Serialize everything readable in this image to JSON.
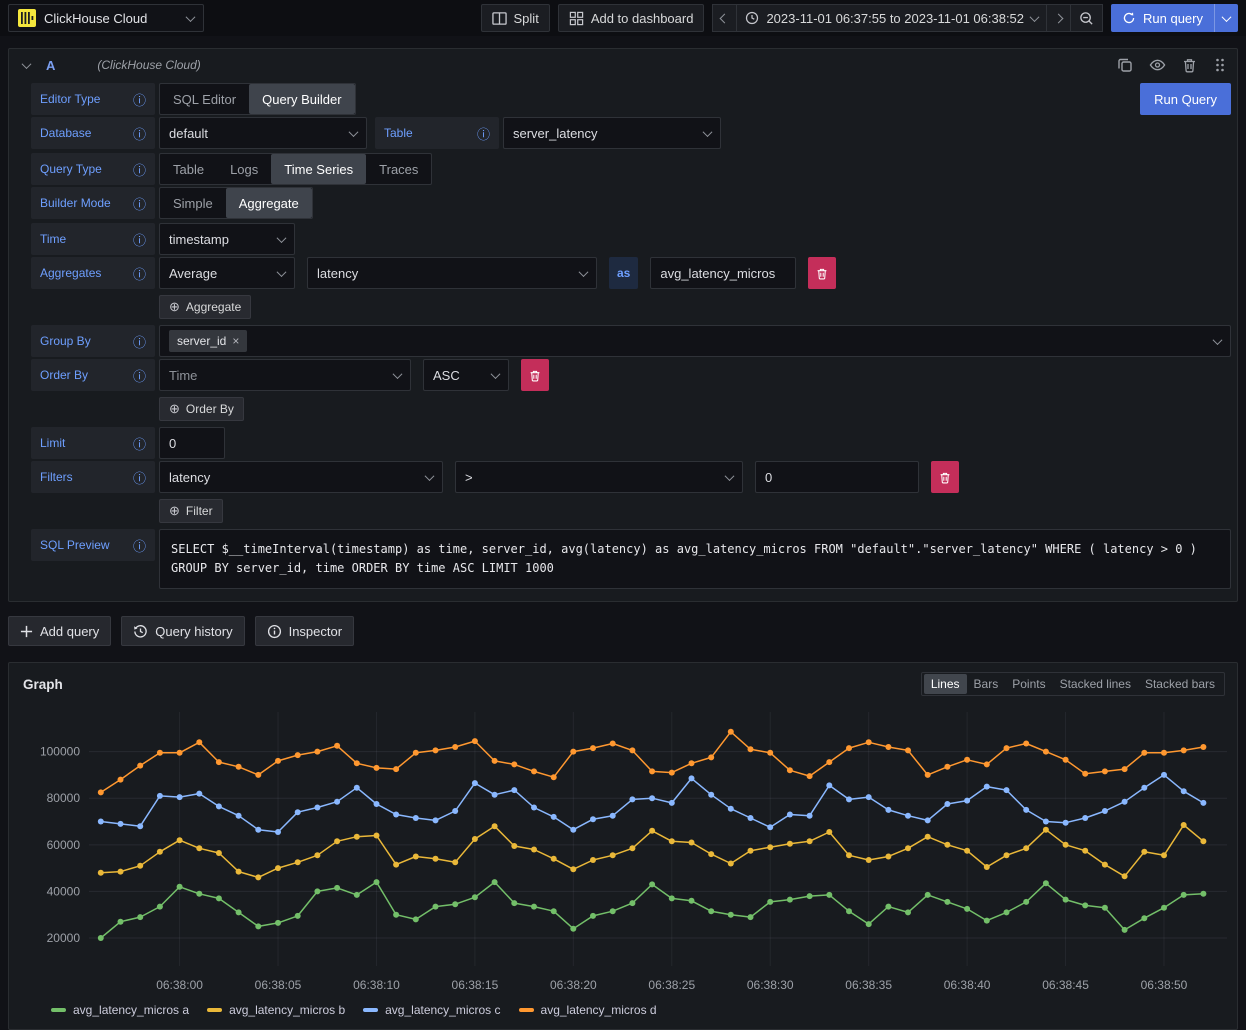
{
  "colors": {
    "accent_blue": "#4a6fd9",
    "label_blue": "#6e9fff",
    "destructive_red": "#c42e5a",
    "brand_yellow": "#f5e73d",
    "panel_bg": "#181b1f"
  },
  "topbar": {
    "datasource_name": "ClickHouse Cloud",
    "split_label": "Split",
    "add_to_dashboard_label": "Add to dashboard",
    "time_range": "2023-11-01 06:37:55 to 2023-11-01 06:38:52",
    "run_query_label": "Run query"
  },
  "query_editor": {
    "ref_id": "A",
    "datasource_hint": "(ClickHouse Cloud)",
    "run_button": "Run Query",
    "editor_type": {
      "label": "Editor Type",
      "options": [
        "SQL Editor",
        "Query Builder"
      ],
      "selected": "Query Builder"
    },
    "database": {
      "label": "Database",
      "value": "default"
    },
    "table": {
      "label": "Table",
      "value": "server_latency"
    },
    "query_type": {
      "label": "Query Type",
      "options": [
        "Table",
        "Logs",
        "Time Series",
        "Traces"
      ],
      "selected": "Time Series"
    },
    "builder_mode": {
      "label": "Builder Mode",
      "options": [
        "Simple",
        "Aggregate"
      ],
      "selected": "Aggregate"
    },
    "time": {
      "label": "Time",
      "value": "timestamp"
    },
    "aggregates": {
      "label": "Aggregates",
      "function": "Average",
      "column": "latency",
      "as_label": "as",
      "alias": "avg_latency_micros",
      "add_button": "Aggregate"
    },
    "group_by": {
      "label": "Group By",
      "chips": [
        "server_id"
      ]
    },
    "order_by": {
      "label": "Order By",
      "field_placeholder": "Time",
      "direction": "ASC",
      "add_button": "Order By"
    },
    "limit": {
      "label": "Limit",
      "value": "0"
    },
    "filters": {
      "label": "Filters",
      "column": "latency",
      "operator": ">",
      "value": "0",
      "add_button": "Filter"
    },
    "sql_preview": {
      "label": "SQL Preview",
      "sql": "SELECT $__timeInterval(timestamp) as time, server_id, avg(latency) as avg_latency_micros FROM \"default\".\"server_latency\" WHERE ( latency > 0 ) GROUP BY server_id, time ORDER BY time ASC LIMIT 1000"
    }
  },
  "footer_buttons": {
    "add_query": "Add query",
    "query_history": "Query history",
    "inspector": "Inspector"
  },
  "graph_panel": {
    "title": "Graph",
    "display_modes": [
      "Lines",
      "Bars",
      "Points",
      "Stacked lines",
      "Stacked bars"
    ],
    "selected_mode": "Lines"
  },
  "chart_data": {
    "type": "line",
    "title": "Graph",
    "xlabel": "",
    "ylabel": "",
    "grid": true,
    "legend_position": "bottom-left",
    "x_unit": "seconds after 06:37:00",
    "x_domain": [
      55.4,
      113.2
    ],
    "y_domain": [
      8000,
      117000
    ],
    "y_ticks": [
      20000,
      40000,
      60000,
      80000,
      100000
    ],
    "x_ticks": {
      "values": [
        60,
        65,
        70,
        75,
        80,
        85,
        90,
        95,
        100,
        105,
        110
      ],
      "labels": [
        "06:38:00",
        "06:38:05",
        "06:38:10",
        "06:38:15",
        "06:38:20",
        "06:38:25",
        "06:38:30",
        "06:38:35",
        "06:38:40",
        "06:38:45",
        "06:38:50"
      ]
    },
    "x": [
      56,
      57,
      58,
      59,
      60,
      61,
      62,
      63,
      64,
      65,
      66,
      67,
      68,
      69,
      70,
      71,
      72,
      73,
      74,
      75,
      76,
      77,
      78,
      79,
      80,
      81,
      82,
      83,
      84,
      85,
      86,
      87,
      88,
      89,
      90,
      91,
      92,
      93,
      94,
      95,
      96,
      97,
      98,
      99,
      100,
      101,
      102,
      103,
      104,
      105,
      106,
      107,
      108,
      109,
      110,
      111,
      112
    ],
    "series": [
      {
        "name": "avg_latency_micros a",
        "color": "#73BF69",
        "values": [
          20000,
          27000,
          29000,
          33500,
          42000,
          39000,
          37000,
          31000,
          25000,
          26500,
          29500,
          40000,
          41500,
          38500,
          44000,
          30000,
          28000,
          33500,
          34500,
          37500,
          44000,
          35000,
          33500,
          31500,
          24000,
          29500,
          31500,
          35000,
          43000,
          37000,
          36000,
          31500,
          30000,
          29000,
          35500,
          36500,
          38000,
          38500,
          31500,
          26000,
          33500,
          31000,
          38500,
          35500,
          32500,
          27500,
          31000,
          35500,
          43500,
          36500,
          34000,
          33000,
          23500,
          28500,
          33000,
          38500,
          39000
        ]
      },
      {
        "name": "avg_latency_micros b",
        "color": "#EAB839",
        "values": [
          48000,
          48500,
          51000,
          57000,
          62000,
          58500,
          56500,
          48500,
          46000,
          50000,
          52500,
          55500,
          61500,
          63500,
          64000,
          51500,
          55000,
          54000,
          52500,
          62500,
          68000,
          59500,
          58000,
          54000,
          49500,
          53500,
          55500,
          58500,
          66000,
          61500,
          61000,
          56000,
          52000,
          57500,
          59000,
          60500,
          61500,
          65500,
          55500,
          53500,
          55000,
          58500,
          63500,
          60000,
          57500,
          50500,
          55500,
          58500,
          66500,
          60000,
          57500,
          51500,
          46500,
          57000,
          55500,
          68500,
          61500
        ]
      },
      {
        "name": "avg_latency_micros c",
        "color": "#8AB8FF",
        "values": [
          70000,
          69000,
          68000,
          81000,
          80500,
          82000,
          76500,
          72500,
          66500,
          65500,
          74000,
          76000,
          78500,
          84500,
          77500,
          73000,
          71500,
          70500,
          74500,
          86500,
          81500,
          83500,
          76000,
          72000,
          66500,
          71000,
          72500,
          79500,
          80000,
          78000,
          88500,
          81500,
          75500,
          71500,
          67500,
          73000,
          72500,
          85500,
          79500,
          80500,
          75000,
          72500,
          70500,
          77500,
          79000,
          85000,
          83500,
          75000,
          70000,
          69500,
          71500,
          74500,
          78500,
          84500,
          90000,
          83000,
          78000
        ]
      },
      {
        "name": "avg_latency_micros d",
        "color": "#FF9830",
        "values": [
          82500,
          88000,
          94000,
          99500,
          99500,
          104000,
          95500,
          93500,
          90000,
          96000,
          98500,
          100000,
          102500,
          95000,
          93000,
          92500,
          99500,
          100500,
          102000,
          104500,
          96000,
          94500,
          91500,
          89000,
          100000,
          101500,
          103500,
          100500,
          91500,
          91000,
          95000,
          97500,
          108500,
          101000,
          99500,
          92000,
          89500,
          95500,
          101500,
          104000,
          102000,
          100500,
          90000,
          93500,
          96500,
          94500,
          101500,
          103500,
          100000,
          96500,
          90500,
          91500,
          92500,
          99500,
          99500,
          100500,
          102000
        ]
      }
    ]
  }
}
